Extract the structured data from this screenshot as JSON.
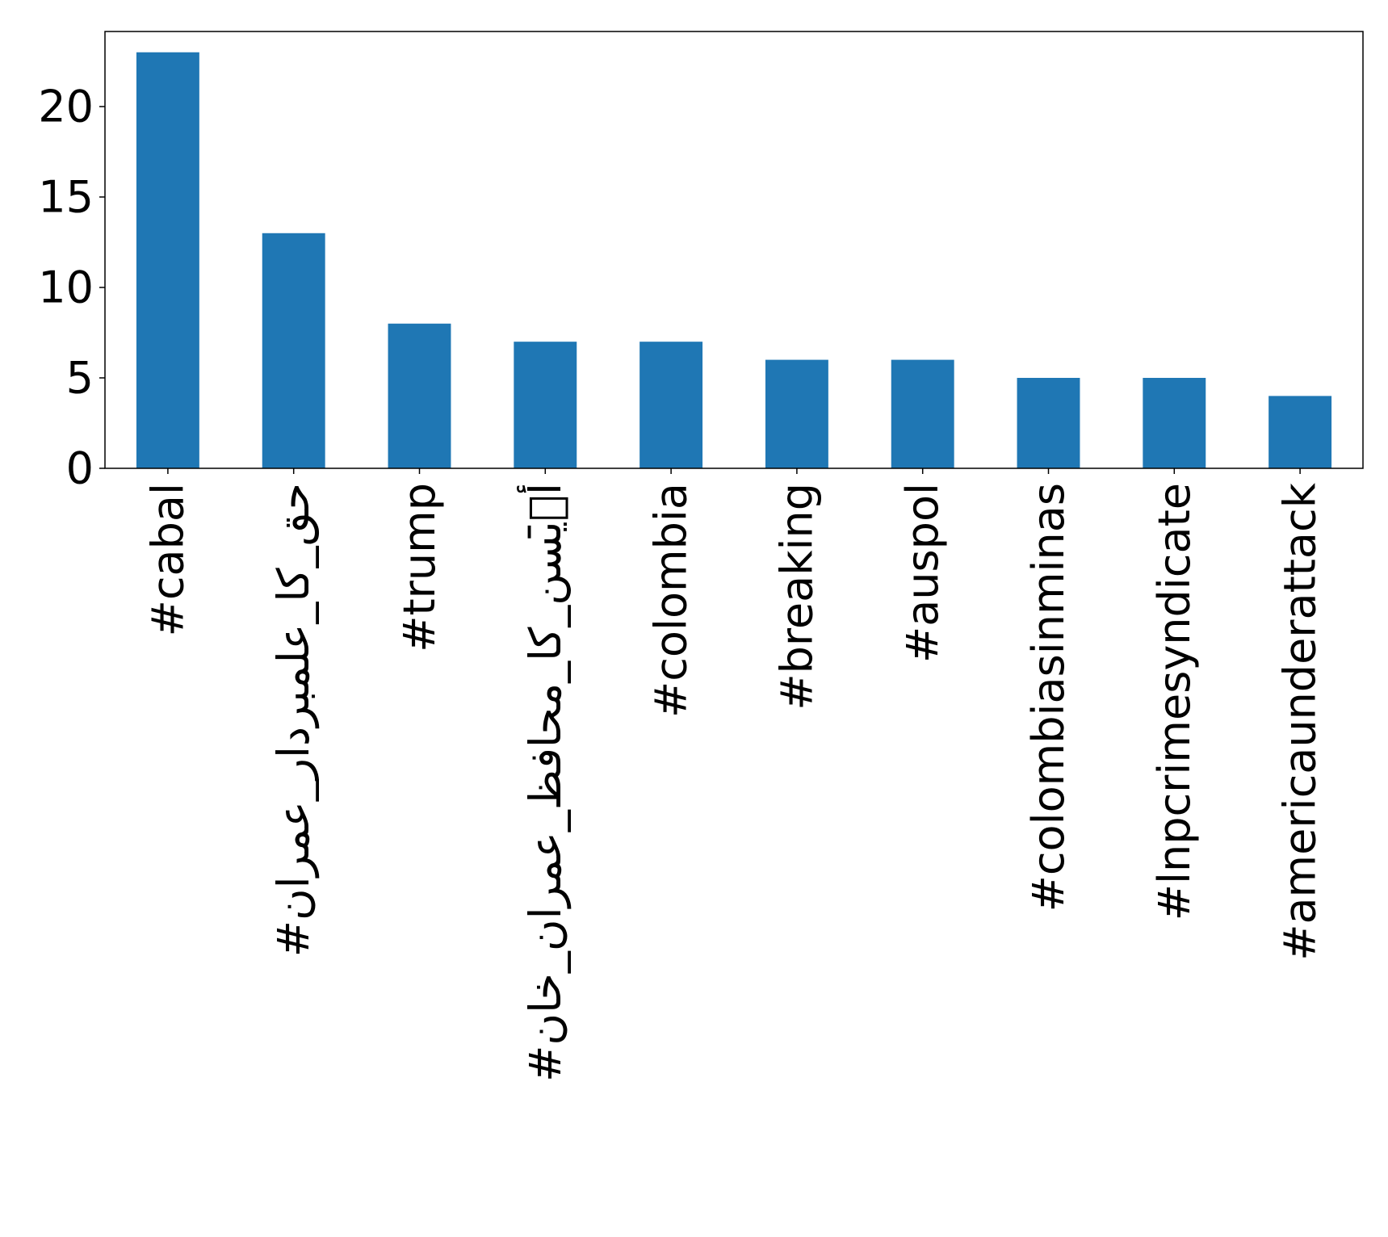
{
  "chart_data": {
    "type": "bar",
    "title": "",
    "xlabel": "",
    "ylabel": "",
    "categories": [
      "#cabal",
      "#حق_کا_علمبردار_عمران",
      "#trump",
      "#أؔ̄یسن_کا_محافظ_عمران_خان",
      "#colombia",
      "#breaking",
      "#auspol",
      "#colombiasinminas",
      "#lnpcrimesyndicate",
      "#americaunderattack"
    ],
    "values": [
      23,
      13,
      8,
      7,
      7,
      6,
      6,
      5,
      5,
      4
    ],
    "ylim": [
      0,
      24.15
    ],
    "yticks": [
      0,
      5,
      10,
      15,
      20
    ],
    "grid": false,
    "bar_color": "#1f77b4"
  }
}
